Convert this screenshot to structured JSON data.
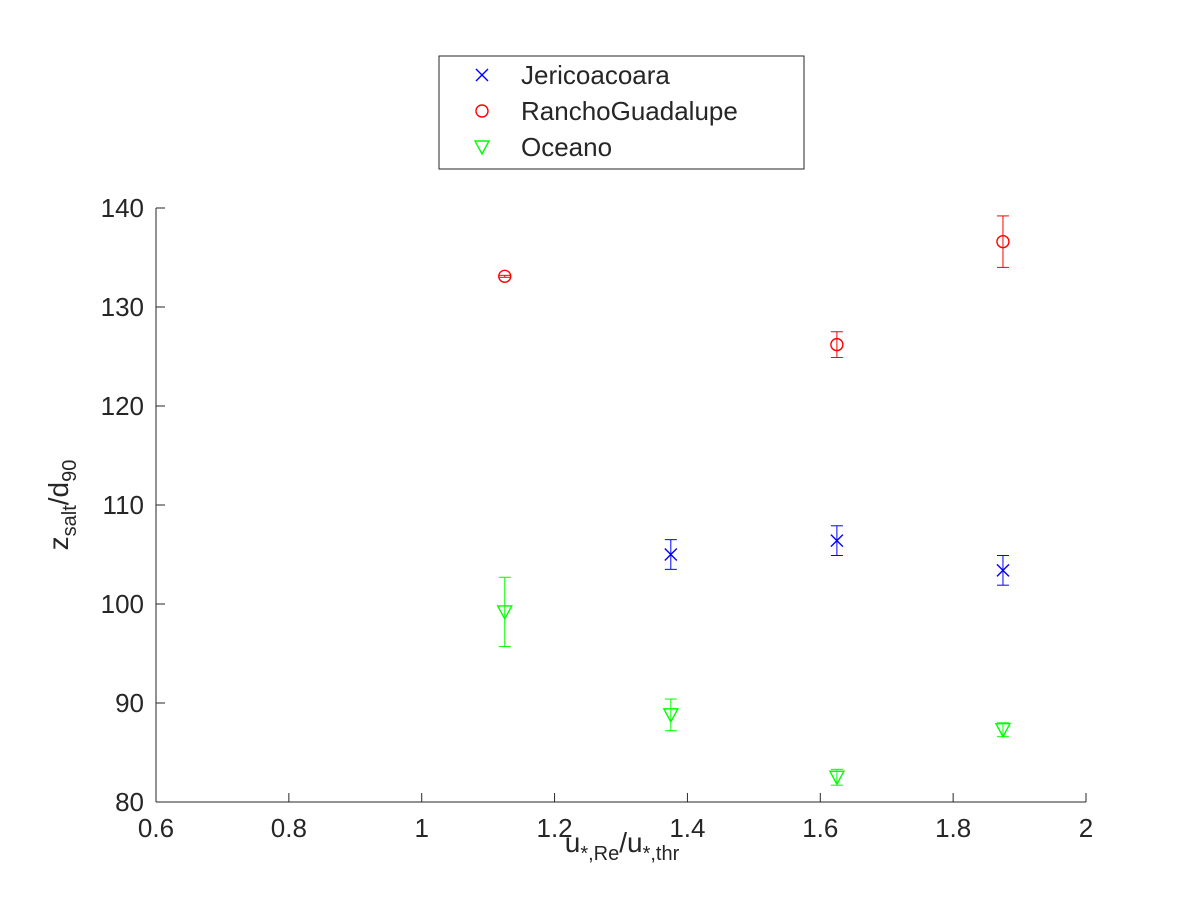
{
  "chart_data": {
    "type": "scatter",
    "xlabel": {
      "base": "u",
      "sub1": "*,Re",
      "mid": "/u",
      "sub2": "*,thr"
    },
    "ylabel": {
      "base": "z",
      "sub1": "salt",
      "mid": "/d",
      "sub2": "90"
    },
    "xlim": [
      0.6,
      2.0
    ],
    "ylim": [
      80,
      140
    ],
    "xticks": [
      0.6,
      0.8,
      1.0,
      1.2,
      1.4,
      1.6,
      1.8,
      2.0
    ],
    "xtick_labels": [
      "0.6",
      "0.8",
      "1",
      "1.2",
      "1.4",
      "1.6",
      "1.8",
      "2"
    ],
    "yticks": [
      80,
      90,
      100,
      110,
      120,
      130,
      140
    ],
    "ytick_labels": [
      "80",
      "90",
      "100",
      "110",
      "120",
      "130",
      "140"
    ],
    "grid": false,
    "legend_position": "top-center, outside axes",
    "series": [
      {
        "name": "Jericoacoara",
        "marker": "x",
        "color": "#0000ff",
        "points": [
          {
            "x": 1.375,
            "y": 105.0,
            "err": 1.5
          },
          {
            "x": 1.625,
            "y": 106.4,
            "err": 1.5
          },
          {
            "x": 1.875,
            "y": 103.4,
            "err": 1.5
          }
        ]
      },
      {
        "name": "RanchoGuadalupe",
        "marker": "o",
        "color": "#ff0000",
        "points": [
          {
            "x": 1.125,
            "y": 133.1,
            "err": 0.1
          },
          {
            "x": 1.625,
            "y": 126.2,
            "err": 1.3
          },
          {
            "x": 1.875,
            "y": 136.6,
            "err": 2.6
          }
        ]
      },
      {
        "name": "Oceano",
        "marker": "triangle-down",
        "color": "#00ff00",
        "points": [
          {
            "x": 1.125,
            "y": 99.2,
            "err": 3.5
          },
          {
            "x": 1.375,
            "y": 88.8,
            "err": 1.6
          },
          {
            "x": 1.625,
            "y": 82.5,
            "err": 0.8
          },
          {
            "x": 1.875,
            "y": 87.3,
            "err": 0.7
          }
        ]
      }
    ]
  }
}
